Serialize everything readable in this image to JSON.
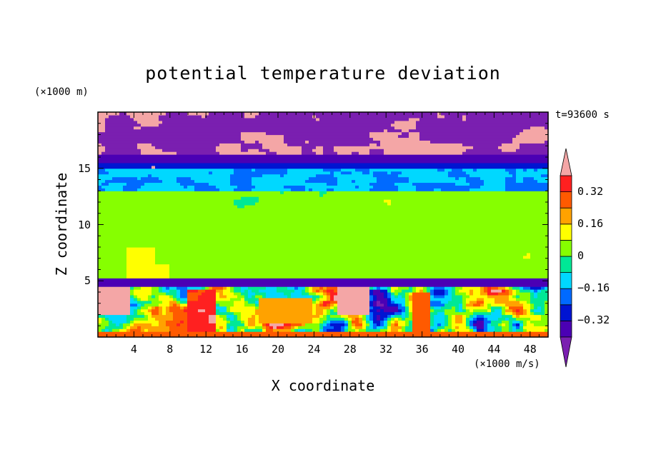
{
  "chart_data": {
    "type": "heatmap",
    "title": "potential temperature deviation",
    "xlabel": "X coordinate",
    "ylabel": "Z coordinate",
    "x_unit": "(×1000 m/s)",
    "y_unit": "(×1000 m)",
    "time_label": "t=93600 s",
    "xlim": [
      0,
      50
    ],
    "ylim": [
      0,
      20
    ],
    "x_ticks": [
      4,
      8,
      12,
      16,
      20,
      24,
      28,
      32,
      36,
      40,
      44,
      48
    ],
    "y_ticks": [
      5,
      10,
      15
    ],
    "colorbar": {
      "levels": [
        -0.4,
        -0.32,
        -0.24,
        -0.16,
        -0.08,
        0,
        0.08,
        0.16,
        0.24,
        0.32,
        0.4
      ],
      "labels": [
        "0.32",
        "0.16",
        "0",
        "−0.16",
        "−0.32"
      ],
      "label_values": [
        0.32,
        0.16,
        0,
        -0.16,
        -0.32
      ],
      "colors": [
        "#7a1fb0",
        "#4b00b4",
        "#0014d2",
        "#006aff",
        "#00d8ff",
        "#00e896",
        "#86ff00",
        "#ffff00",
        "#ffa200",
        "#ff5a00",
        "#ff2020",
        "#f4a6a6"
      ]
    },
    "layers": [
      {
        "z": [
          0,
          5
        ],
        "description_value": "mixed"
      },
      {
        "z": [
          5,
          13
        ],
        "value": 0.02
      },
      {
        "z": [
          13,
          15
        ],
        "value": -0.12
      },
      {
        "z": [
          15,
          16
        ],
        "value": -0.35
      },
      {
        "z": [
          16,
          20
        ],
        "value": -0.45
      }
    ]
  }
}
